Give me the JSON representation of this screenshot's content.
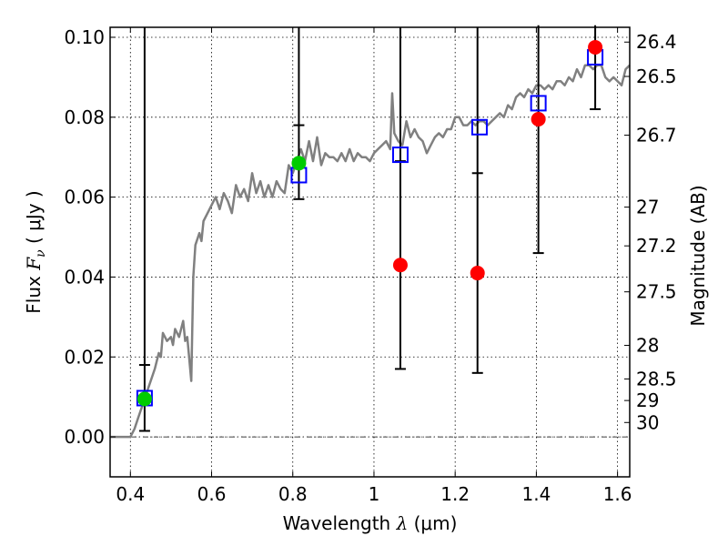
{
  "chart_data": {
    "type": "scatter",
    "xlabel": "Wavelength λ (μm)",
    "xlabel_parts": {
      "prefix": "Wavelength ",
      "symbol": "λ",
      "unit": " (μm)"
    },
    "ylabel": "Flux F_ν (μJy)",
    "ylabel_parts": {
      "prefix": "Flux ",
      "symbol": "F",
      "subscript": "ν",
      "unit": " ( μJy )"
    },
    "y2label": "Magnitude (AB)",
    "xlim": [
      0.35,
      1.63
    ],
    "ylim": [
      -0.01,
      0.1025
    ],
    "grid": true,
    "zero_line": true,
    "x_ticks": [
      0.4,
      0.6,
      0.8,
      1.0,
      1.2,
      1.4,
      1.6
    ],
    "x_tick_labels": [
      "0.4",
      "0.6",
      "0.8",
      "1",
      "1.2",
      "1.4",
      "1.6"
    ],
    "y_ticks": [
      0.0,
      0.02,
      0.04,
      0.06,
      0.08,
      0.1
    ],
    "y_tick_labels": [
      "0.00",
      "0.02",
      "0.04",
      "0.06",
      "0.08",
      "0.10"
    ],
    "mag_ticks": [
      {
        "flux": 0.0988,
        "label": "26.4"
      },
      {
        "flux": 0.0902,
        "label": "26.5"
      },
      {
        "flux": 0.0755,
        "label": "26.7"
      },
      {
        "flux": 0.0575,
        "label": "27"
      },
      {
        "flux": 0.0478,
        "label": "27.2"
      },
      {
        "flux": 0.0363,
        "label": "27.5"
      },
      {
        "flux": 0.0229,
        "label": "28"
      },
      {
        "flux": 0.0145,
        "label": "28.5"
      },
      {
        "flux": 0.0091,
        "label": "29"
      },
      {
        "flux": 0.0036,
        "label": "30"
      }
    ],
    "series": [
      {
        "kind": "line",
        "color": "#808080",
        "points": [
          [
            0.35,
            0.0
          ],
          [
            0.39,
            0.0
          ],
          [
            0.4,
            0.0
          ],
          [
            0.41,
            0.002
          ],
          [
            0.42,
            0.005
          ],
          [
            0.43,
            0.008
          ],
          [
            0.44,
            0.011
          ],
          [
            0.45,
            0.014
          ],
          [
            0.46,
            0.017
          ],
          [
            0.47,
            0.021
          ],
          [
            0.475,
            0.02
          ],
          [
            0.48,
            0.026
          ],
          [
            0.49,
            0.024
          ],
          [
            0.5,
            0.025
          ],
          [
            0.505,
            0.023
          ],
          [
            0.51,
            0.027
          ],
          [
            0.52,
            0.025
          ],
          [
            0.53,
            0.029
          ],
          [
            0.535,
            0.024
          ],
          [
            0.54,
            0.025
          ],
          [
            0.55,
            0.014
          ],
          [
            0.555,
            0.04
          ],
          [
            0.56,
            0.048
          ],
          [
            0.57,
            0.051
          ],
          [
            0.575,
            0.049
          ],
          [
            0.58,
            0.054
          ],
          [
            0.59,
            0.056
          ],
          [
            0.6,
            0.058
          ],
          [
            0.61,
            0.06
          ],
          [
            0.62,
            0.057
          ],
          [
            0.63,
            0.061
          ],
          [
            0.64,
            0.059
          ],
          [
            0.65,
            0.056
          ],
          [
            0.66,
            0.063
          ],
          [
            0.67,
            0.06
          ],
          [
            0.68,
            0.062
          ],
          [
            0.69,
            0.059
          ],
          [
            0.7,
            0.066
          ],
          [
            0.71,
            0.061
          ],
          [
            0.72,
            0.064
          ],
          [
            0.73,
            0.06
          ],
          [
            0.74,
            0.063
          ],
          [
            0.75,
            0.06
          ],
          [
            0.76,
            0.064
          ],
          [
            0.77,
            0.062
          ],
          [
            0.78,
            0.061
          ],
          [
            0.79,
            0.068
          ],
          [
            0.8,
            0.066
          ],
          [
            0.81,
            0.069
          ],
          [
            0.82,
            0.072
          ],
          [
            0.83,
            0.069
          ],
          [
            0.84,
            0.074
          ],
          [
            0.85,
            0.069
          ],
          [
            0.86,
            0.075
          ],
          [
            0.87,
            0.068
          ],
          [
            0.88,
            0.071
          ],
          [
            0.89,
            0.07
          ],
          [
            0.9,
            0.07
          ],
          [
            0.91,
            0.069
          ],
          [
            0.92,
            0.071
          ],
          [
            0.93,
            0.069
          ],
          [
            0.94,
            0.072
          ],
          [
            0.95,
            0.069
          ],
          [
            0.96,
            0.071
          ],
          [
            0.97,
            0.07
          ],
          [
            0.98,
            0.07
          ],
          [
            0.99,
            0.069
          ],
          [
            1.0,
            0.071
          ],
          [
            1.01,
            0.072
          ],
          [
            1.02,
            0.073
          ],
          [
            1.03,
            0.074
          ],
          [
            1.04,
            0.072
          ],
          [
            1.045,
            0.086
          ],
          [
            1.05,
            0.076
          ],
          [
            1.06,
            0.074
          ],
          [
            1.07,
            0.073
          ],
          [
            1.08,
            0.079
          ],
          [
            1.09,
            0.075
          ],
          [
            1.1,
            0.077
          ],
          [
            1.11,
            0.075
          ],
          [
            1.12,
            0.074
          ],
          [
            1.13,
            0.071
          ],
          [
            1.14,
            0.073
          ],
          [
            1.15,
            0.075
          ],
          [
            1.16,
            0.076
          ],
          [
            1.17,
            0.075
          ],
          [
            1.18,
            0.077
          ],
          [
            1.19,
            0.077
          ],
          [
            1.2,
            0.08
          ],
          [
            1.21,
            0.08
          ],
          [
            1.22,
            0.078
          ],
          [
            1.23,
            0.078
          ],
          [
            1.24,
            0.079
          ],
          [
            1.25,
            0.078
          ],
          [
            1.26,
            0.079
          ],
          [
            1.27,
            0.079
          ],
          [
            1.28,
            0.078
          ],
          [
            1.29,
            0.079
          ],
          [
            1.3,
            0.08
          ],
          [
            1.31,
            0.081
          ],
          [
            1.32,
            0.08
          ],
          [
            1.33,
            0.083
          ],
          [
            1.34,
            0.082
          ],
          [
            1.35,
            0.085
          ],
          [
            1.36,
            0.086
          ],
          [
            1.37,
            0.085
          ],
          [
            1.38,
            0.087
          ],
          [
            1.39,
            0.086
          ],
          [
            1.4,
            0.088
          ],
          [
            1.41,
            0.088
          ],
          [
            1.42,
            0.087
          ],
          [
            1.43,
            0.088
          ],
          [
            1.44,
            0.087
          ],
          [
            1.45,
            0.089
          ],
          [
            1.46,
            0.089
          ],
          [
            1.47,
            0.088
          ],
          [
            1.48,
            0.09
          ],
          [
            1.49,
            0.089
          ],
          [
            1.5,
            0.092
          ],
          [
            1.51,
            0.09
          ],
          [
            1.52,
            0.093
          ],
          [
            1.53,
            0.093
          ],
          [
            1.54,
            0.092
          ],
          [
            1.55,
            0.093
          ],
          [
            1.56,
            0.093
          ],
          [
            1.57,
            0.09
          ],
          [
            1.58,
            0.089
          ],
          [
            1.59,
            0.09
          ],
          [
            1.6,
            0.089
          ],
          [
            1.61,
            0.088
          ],
          [
            1.62,
            0.092
          ],
          [
            1.63,
            0.093
          ]
        ]
      },
      {
        "kind": "errorbar",
        "color": "#000000",
        "points": [
          {
            "x": 0.435,
            "y": 0.0095,
            "ylow": 0.0015,
            "yhigh": 0.018
          },
          {
            "x": 0.815,
            "y": 0.0685,
            "ylow": 0.0595,
            "yhigh": 0.078
          },
          {
            "x": 1.065,
            "y": 0.043,
            "ylow": 0.017,
            "yhigh": 0.069
          },
          {
            "x": 1.255,
            "y": 0.041,
            "ylow": 0.016,
            "yhigh": 0.066
          },
          {
            "x": 1.405,
            "y": 0.0795,
            "ylow": 0.046,
            "yhigh": 0.103
          },
          {
            "x": 1.545,
            "y": 0.0975,
            "ylow": 0.082,
            "yhigh": 0.103
          }
        ]
      },
      {
        "kind": "squares",
        "color": "#0000ff",
        "points": [
          [
            0.435,
            0.0097
          ],
          [
            0.815,
            0.0655
          ],
          [
            1.065,
            0.0706
          ],
          [
            1.26,
            0.0775
          ],
          [
            1.405,
            0.0835
          ],
          [
            1.545,
            0.095
          ]
        ]
      },
      {
        "kind": "circles",
        "color": "#00cc00",
        "points": [
          [
            0.435,
            0.0095
          ],
          [
            0.815,
            0.0685
          ]
        ]
      },
      {
        "kind": "circles",
        "color": "#ff0000",
        "points": [
          [
            1.065,
            0.043
          ],
          [
            1.255,
            0.041
          ],
          [
            1.405,
            0.0795
          ],
          [
            1.545,
            0.0975
          ]
        ]
      }
    ]
  }
}
